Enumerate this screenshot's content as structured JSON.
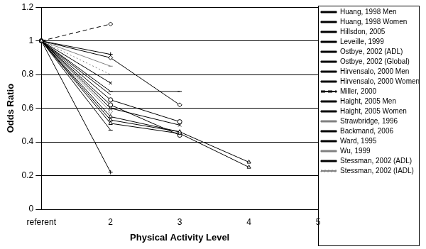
{
  "chart_data": {
    "type": "line",
    "x_label": "Physical Activity Level",
    "y_label": "Odds Ratio",
    "categories": [
      "referent",
      "2",
      "3",
      "4",
      "5"
    ],
    "ylim": [
      0,
      1.2
    ],
    "yticks": [
      0,
      0.2,
      0.4,
      0.6,
      0.8,
      1,
      1.2
    ],
    "grid": true,
    "legend": "right",
    "series": [
      {
        "name": "Huang, 1998 Men",
        "color": "#000000",
        "marker": "triangle",
        "line_style": "solid",
        "values": [
          1,
          0.53,
          0.46,
          0.28,
          null
        ]
      },
      {
        "name": "Huang, 1998 Women",
        "color": "#000000",
        "marker": "triangle",
        "line_style": "solid",
        "values": [
          1,
          0.51,
          0.45,
          0.25,
          null
        ]
      },
      {
        "name": "Hillsdon, 2005",
        "color": "#000000",
        "marker": "dash",
        "line_style": "solid",
        "values": [
          1,
          0.7,
          0.7,
          null,
          null
        ]
      },
      {
        "name": "Leveille, 1999",
        "color": "#000000",
        "marker": "diamond",
        "line_style": "solid",
        "values": [
          1,
          0.9,
          0.62,
          null,
          null
        ]
      },
      {
        "name": "Ostbye, 2002 (ADL)",
        "color": "#000000",
        "marker": "x",
        "line_style": "solid",
        "values": [
          1,
          0.6,
          0.5,
          null,
          null
        ]
      },
      {
        "name": "Ostbye, 2002 (Global)",
        "color": "#000000",
        "marker": "circle",
        "line_style": "solid",
        "values": [
          1,
          0.65,
          0.52,
          null,
          null
        ]
      },
      {
        "name": "Hirvensalo, 2000 Men",
        "color": "#000000",
        "marker": "cross",
        "line_style": "solid",
        "values": [
          1,
          0.22,
          null,
          null,
          null
        ]
      },
      {
        "name": "Hirvensalo, 2000 Women",
        "color": "#000000",
        "marker": "dash",
        "line_style": "solid",
        "values": [
          1,
          0.47,
          null,
          null,
          null
        ]
      },
      {
        "name": "Miller, 2000",
        "color": "#000000",
        "marker": "diamond",
        "line_style": "dashed",
        "values": [
          1,
          1.1,
          null,
          null,
          null
        ]
      },
      {
        "name": "Haight, 2005 Men",
        "color": "#000000",
        "marker": "circle",
        "line_style": "solid",
        "values": [
          1,
          0.62,
          0.44,
          null,
          null
        ]
      },
      {
        "name": "Haight, 2005 Women",
        "color": "#000000",
        "marker": "triangle",
        "line_style": "solid",
        "values": [
          1,
          0.55,
          0.46,
          null,
          null
        ]
      },
      {
        "name": "Strawbridge, 1996",
        "color": "#808080",
        "marker": "dash",
        "line_style": "solid",
        "values": [
          1,
          0.85,
          null,
          null,
          null
        ]
      },
      {
        "name": "Backmand, 2006",
        "color": "#000000",
        "marker": "x",
        "line_style": "solid",
        "values": [
          1,
          0.75,
          null,
          null,
          null
        ]
      },
      {
        "name": "Ward, 1995",
        "color": "#000000",
        "marker": "cross",
        "line_style": "solid",
        "values": [
          1,
          0.92,
          null,
          null,
          null
        ]
      },
      {
        "name": "Wu, 1999",
        "color": "#808080",
        "marker": "diamond",
        "line_style": "solid",
        "values": [
          1,
          0.58,
          null,
          null,
          null
        ]
      },
      {
        "name": "Stessman, 2002 (ADL)",
        "color": "#000000",
        "marker": "none",
        "line_style": "solid",
        "values": [
          1,
          0.68,
          null,
          null,
          null
        ]
      },
      {
        "name": "Stessman, 2002 (IADL)",
        "color": "#808080",
        "marker": "none",
        "line_style": "dotted",
        "values": [
          1,
          0.8,
          null,
          null,
          null
        ]
      }
    ]
  }
}
